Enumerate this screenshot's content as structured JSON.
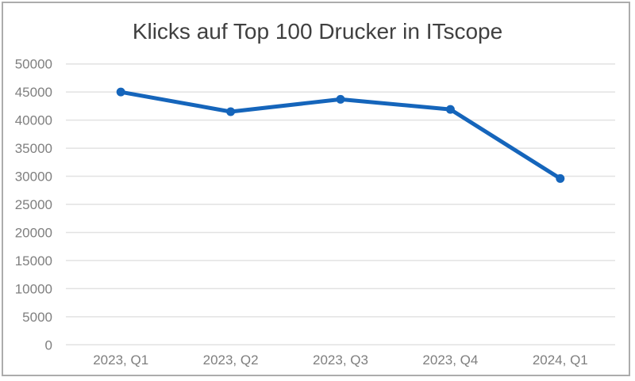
{
  "frame": {
    "background_color": "#FFFFFF",
    "border_color": "#ACACAC"
  },
  "chart_data": {
    "type": "line",
    "title": "Klicks auf Top 100 Drucker in ITscope",
    "categories": [
      "2023, Q1",
      "2023, Q2",
      "2023, Q3",
      "2023, Q4",
      "2024, Q1"
    ],
    "values": [
      45000,
      41500,
      43700,
      41900,
      29600
    ],
    "xlabel": "",
    "ylabel": "",
    "ylim": [
      0,
      50000
    ],
    "ytick_step": 5000,
    "ytick_labels": [
      "0",
      "5000",
      "10000",
      "15000",
      "20000",
      "25000",
      "30000",
      "35000",
      "40000",
      "45000",
      "50000"
    ],
    "grid": "horizontal",
    "legend": "none",
    "marker": "circle",
    "line_color": "#1565BB",
    "marker_color": "#1565BB",
    "title_color": "#404040",
    "axis_label_color": "#7F7F7F",
    "gridline_color": "#E2E2E2"
  }
}
